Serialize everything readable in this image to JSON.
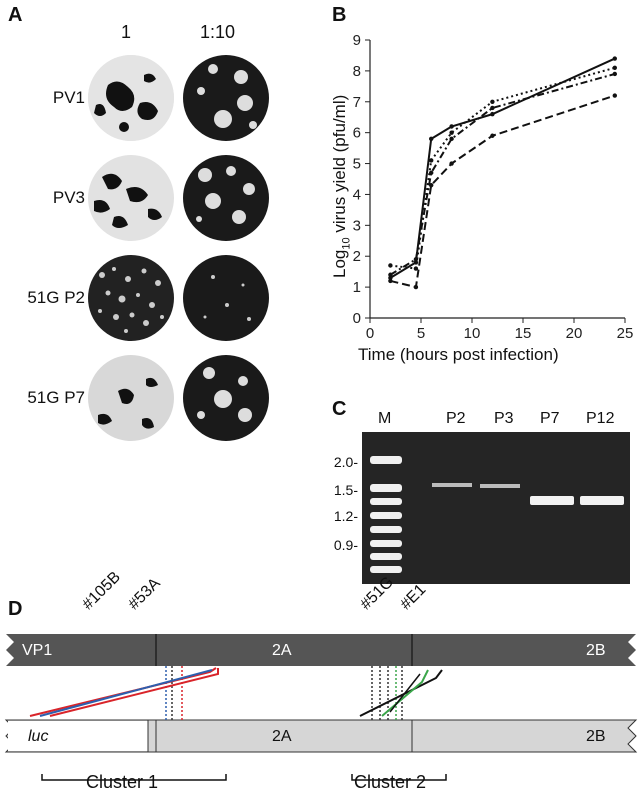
{
  "panels": {
    "A": {
      "letter": "A",
      "columns": [
        "1",
        "1:10"
      ],
      "rows": [
        "PV1",
        "PV3",
        "51G P2",
        "51G P7"
      ]
    },
    "B": {
      "letter": "B"
    },
    "C": {
      "letter": "C",
      "lanes": [
        "M",
        "P2",
        "P3",
        "P7",
        "P12"
      ],
      "ladder": [
        "2.0-",
        "1.5-",
        "1.2-",
        "0.9-"
      ]
    },
    "D": {
      "letter": "D",
      "sites": [
        "#105B",
        "#53A",
        "#51G",
        "#E1"
      ],
      "top_segments": [
        "VP1",
        "2A",
        "2B"
      ],
      "bottom_segments": [
        "luc",
        "2A",
        "2B"
      ],
      "clusters": [
        "Cluster 1",
        "Cluster 2"
      ],
      "colors": {
        "dark_bar": "#555555",
        "light_bar": "#d4d4d4",
        "red": "#d9242a",
        "blue": "#2d5fae",
        "green": "#3aa64a"
      }
    }
  },
  "chart_data": {
    "type": "line",
    "xlabel": "Time (hours post infection)",
    "ylabel_pre": "Log",
    "ylabel_sub": "10",
    "ylabel_post": " virus yield (pfu/ml)",
    "xlim": [
      0,
      25
    ],
    "ylim": [
      0,
      9
    ],
    "xticks": [
      0,
      5,
      10,
      15,
      20,
      25
    ],
    "yticks": [
      0,
      1,
      2,
      3,
      4,
      5,
      6,
      7,
      8,
      9
    ],
    "series": [
      {
        "style": "solid",
        "x": [
          2,
          4.5,
          6,
          8,
          12,
          24
        ],
        "y": [
          1.3,
          1.8,
          5.8,
          6.2,
          6.6,
          8.4
        ]
      },
      {
        "style": "dashed",
        "x": [
          2,
          4.5,
          6,
          8,
          12,
          24
        ],
        "y": [
          1.2,
          1.0,
          4.3,
          5.0,
          5.9,
          7.2
        ]
      },
      {
        "style": "dotted",
        "x": [
          2,
          4.5,
          6,
          8,
          12,
          24
        ],
        "y": [
          1.7,
          1.6,
          5.1,
          6.0,
          7.0,
          8.1
        ]
      },
      {
        "style": "dashdot",
        "x": [
          2,
          4.5,
          6,
          8,
          12,
          24
        ],
        "y": [
          1.4,
          1.9,
          4.7,
          5.8,
          6.8,
          7.9
        ]
      }
    ]
  }
}
